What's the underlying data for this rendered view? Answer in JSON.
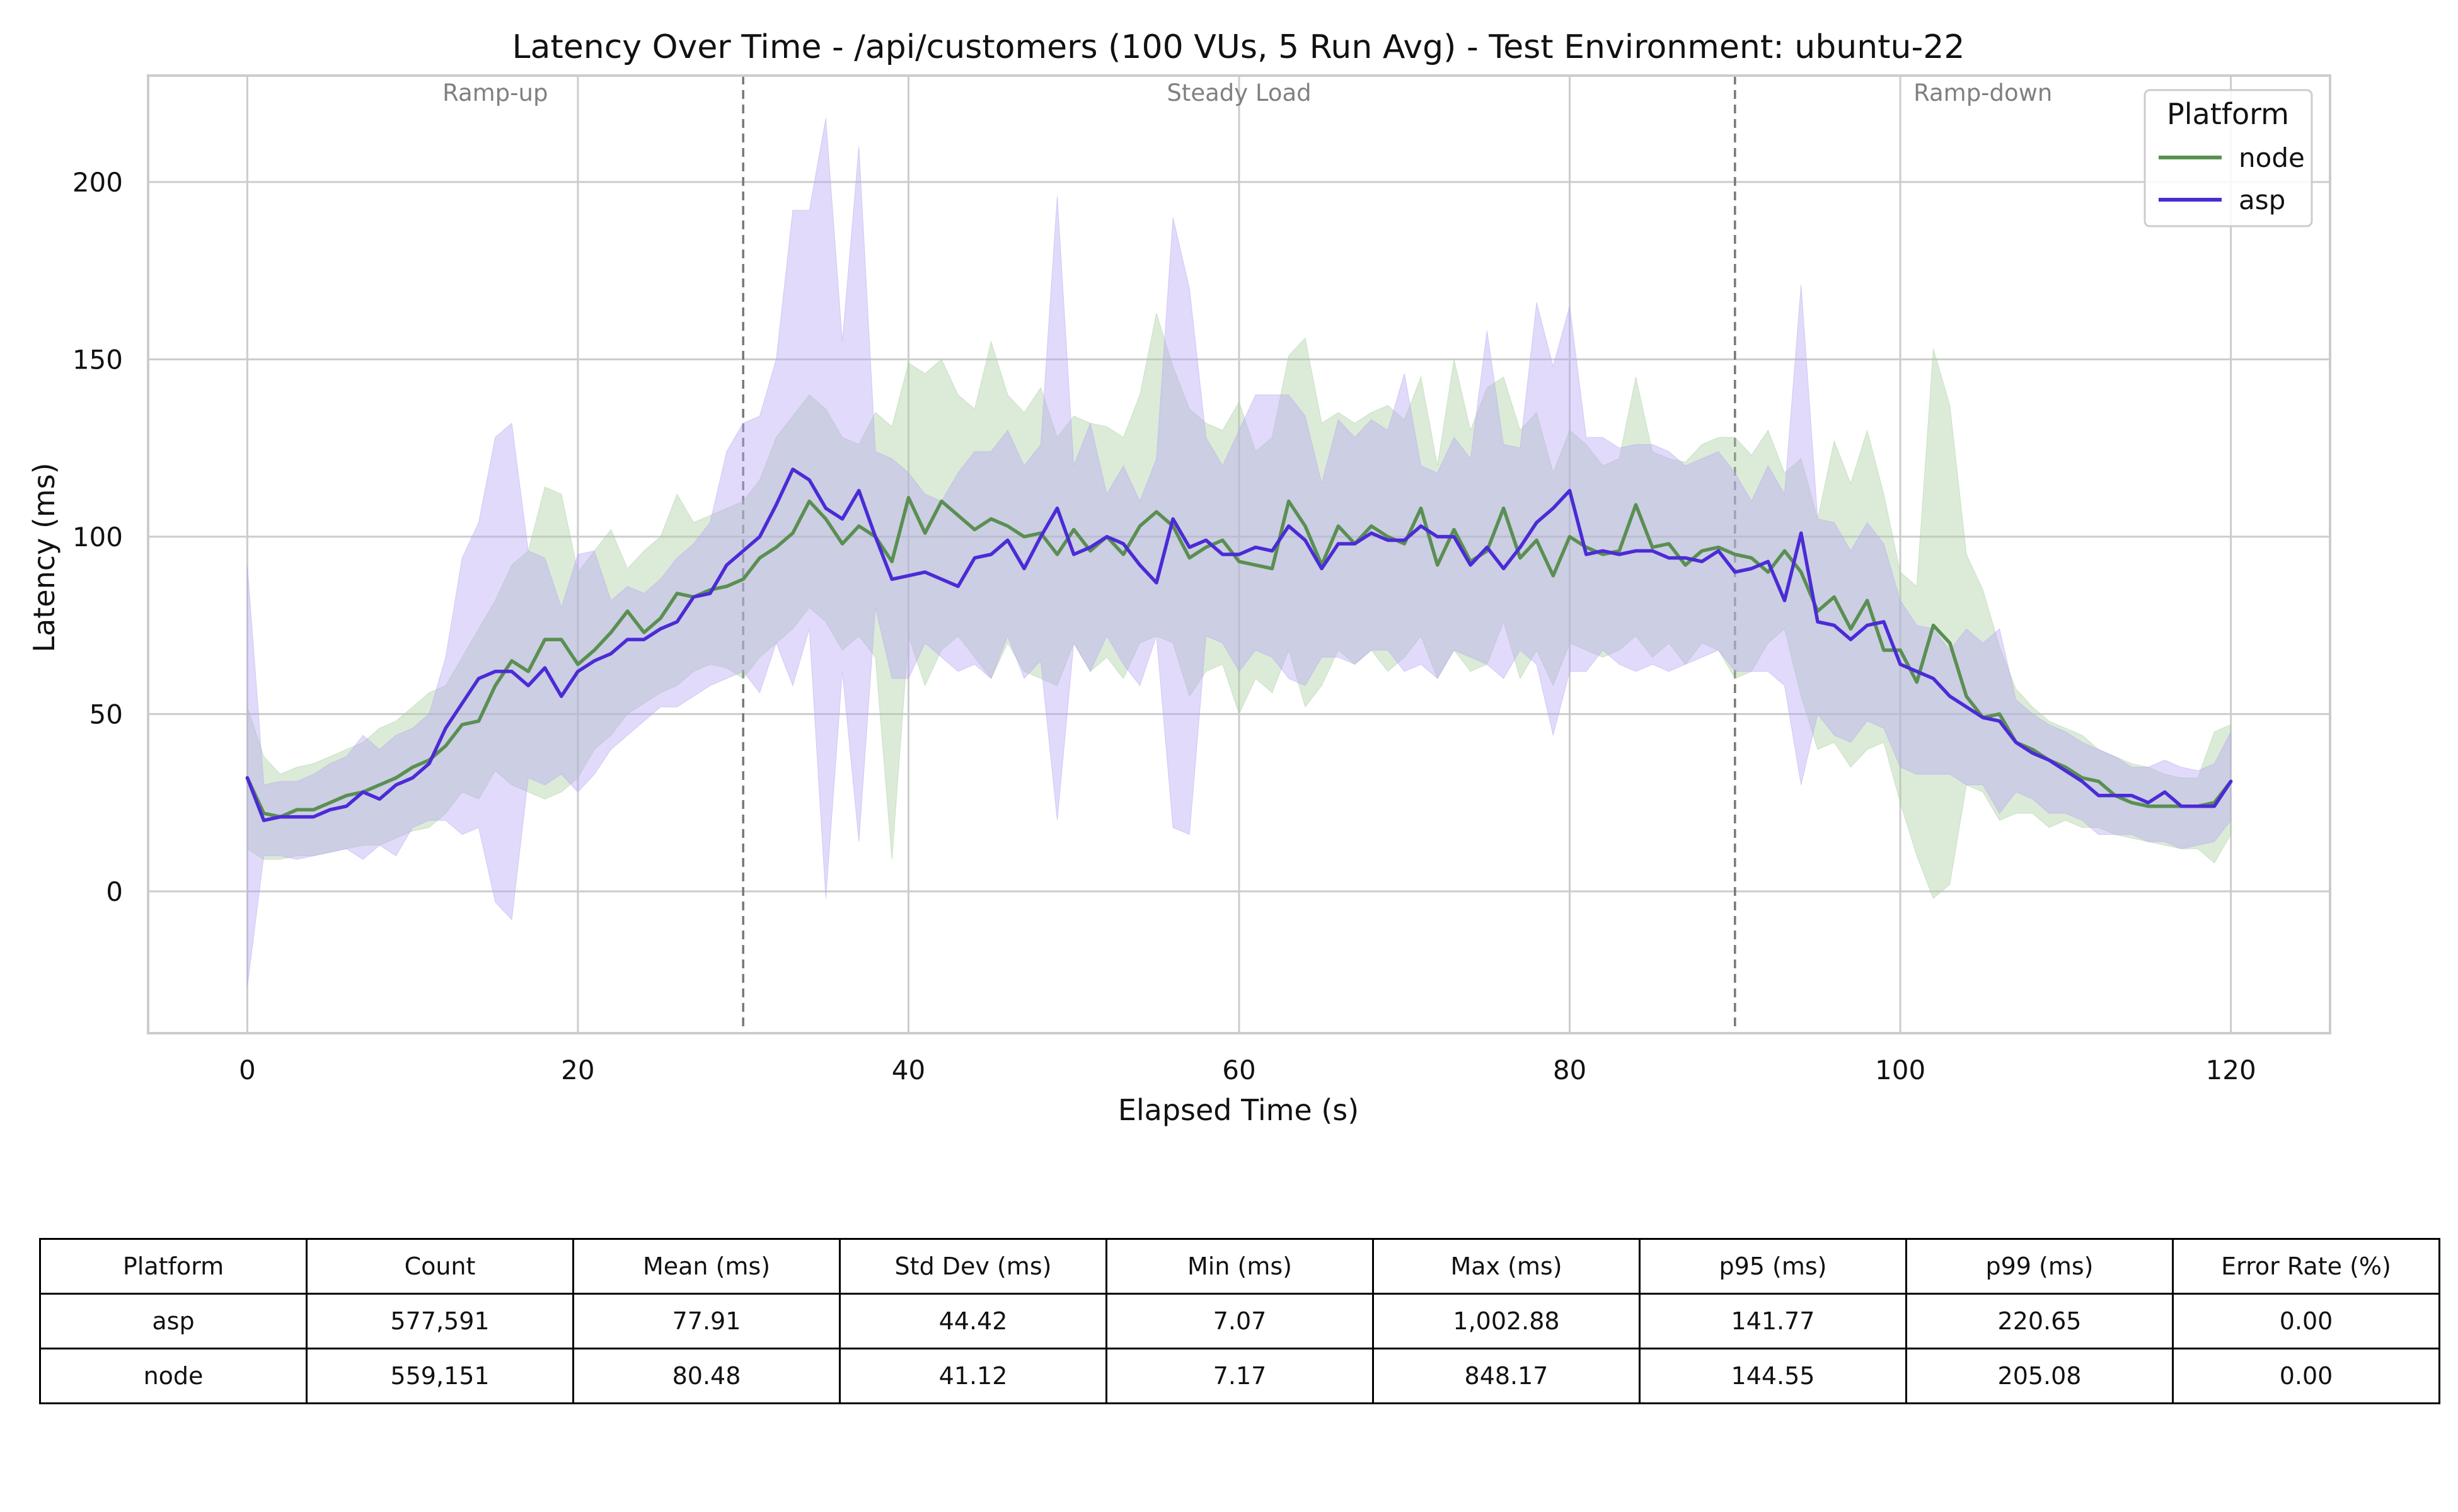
{
  "chart_data": {
    "type": "line",
    "title": "Latency Over Time - /api/customers (100 VUs, 5 Run Avg) - Test Environment: ubuntu-22",
    "xlabel": "Elapsed Time (s)",
    "ylabel": "Latency (ms)",
    "xlim": [
      -6,
      126
    ],
    "ylim": [
      -40,
      230
    ],
    "xticks": [
      0,
      20,
      40,
      60,
      80,
      100,
      120
    ],
    "yticks": [
      0,
      50,
      100,
      150,
      200
    ],
    "grid": true,
    "legend": {
      "title": "Platform",
      "placement": "top-right"
    },
    "phase_boundaries": [
      30,
      90
    ],
    "phases": [
      {
        "label": "Ramp-up",
        "x": 15
      },
      {
        "label": "Steady Load",
        "x": 60
      },
      {
        "label": "Ramp-down",
        "x": 105
      }
    ],
    "series": [
      {
        "name": "node",
        "color": "#5a8f52",
        "band_color": "#a9cfa2",
        "x": [
          0,
          1,
          2,
          3,
          4,
          5,
          6,
          7,
          8,
          9,
          10,
          11,
          12,
          13,
          14,
          15,
          16,
          17,
          18,
          19,
          20,
          21,
          22,
          23,
          24,
          25,
          26,
          27,
          28,
          29,
          30,
          31,
          32,
          33,
          34,
          35,
          36,
          37,
          38,
          39,
          40,
          41,
          42,
          43,
          44,
          45,
          46,
          47,
          48,
          49,
          50,
          51,
          52,
          53,
          54,
          55,
          56,
          57,
          58,
          59,
          60,
          61,
          62,
          63,
          64,
          65,
          66,
          67,
          68,
          69,
          70,
          71,
          72,
          73,
          74,
          75,
          76,
          77,
          78,
          79,
          80,
          81,
          82,
          83,
          84,
          85,
          86,
          87,
          88,
          89,
          90,
          91,
          92,
          93,
          94,
          95,
          96,
          97,
          98,
          99,
          100,
          101,
          102,
          103,
          104,
          105,
          106,
          107,
          108,
          109,
          110,
          111,
          112,
          113,
          114,
          115,
          116,
          117,
          118,
          119,
          120
        ],
        "mean": [
          32,
          22,
          21,
          23,
          23,
          25,
          27,
          28,
          30,
          32,
          35,
          37,
          41,
          47,
          48,
          58,
          65,
          62,
          71,
          71,
          64,
          68,
          73,
          79,
          73,
          77,
          84,
          83,
          85,
          86,
          88,
          94,
          97,
          101,
          110,
          105,
          98,
          103,
          100,
          93,
          111,
          101,
          110,
          106,
          102,
          105,
          103,
          100,
          101,
          95,
          102,
          96,
          100,
          95,
          103,
          107,
          103,
          94,
          97,
          99,
          93,
          92,
          91,
          110,
          103,
          92,
          103,
          98,
          103,
          100,
          98,
          108,
          92,
          102,
          93,
          96,
          108,
          94,
          99,
          89,
          100,
          97,
          95,
          96,
          109,
          97,
          98,
          92,
          96,
          97,
          95,
          94,
          90,
          96,
          90,
          79,
          83,
          74,
          82,
          68,
          68,
          59,
          75,
          70,
          55,
          49,
          50,
          42,
          40,
          37,
          35,
          32,
          31,
          27,
          25,
          24,
          24,
          24,
          24,
          25,
          31
        ],
        "upper": [
          52,
          38,
          33,
          35,
          36,
          38,
          40,
          42,
          46,
          48,
          52,
          56,
          58,
          66,
          74,
          82,
          92,
          96,
          114,
          112,
          90,
          96,
          102,
          91,
          96,
          100,
          112,
          104,
          106,
          108,
          110,
          116,
          128,
          134,
          140,
          136,
          128,
          126,
          135,
          131,
          149,
          146,
          150,
          140,
          136,
          155,
          140,
          135,
          142,
          128,
          134,
          132,
          131,
          128,
          140,
          163,
          148,
          136,
          132,
          130,
          138,
          124,
          128,
          151,
          156,
          132,
          135,
          132,
          135,
          137,
          133,
          145,
          120,
          150,
          130,
          142,
          145,
          130,
          135,
          118,
          130,
          126,
          120,
          122,
          145,
          124,
          122,
          121,
          126,
          128,
          128,
          123,
          130,
          118,
          122,
          105,
          127,
          115,
          130,
          112,
          90,
          86,
          153,
          137,
          95,
          85,
          69,
          57,
          52,
          48,
          46,
          44,
          40,
          38,
          36,
          35,
          33,
          32,
          32,
          45,
          47
        ],
        "lower": [
          12,
          9,
          9,
          10,
          10,
          11,
          12,
          13,
          13,
          15,
          17,
          18,
          22,
          28,
          26,
          34,
          30,
          28,
          26,
          28,
          32,
          40,
          44,
          50,
          53,
          56,
          58,
          62,
          64,
          63,
          60,
          66,
          70,
          74,
          80,
          76,
          68,
          72,
          66,
          9,
          72,
          58,
          68,
          72,
          66,
          60,
          70,
          62,
          60,
          58,
          70,
          62,
          66,
          60,
          70,
          72,
          70,
          55,
          62,
          64,
          50,
          60,
          56,
          68,
          52,
          58,
          68,
          64,
          68,
          62,
          66,
          72,
          60,
          68,
          62,
          64,
          76,
          60,
          68,
          58,
          70,
          68,
          66,
          68,
          72,
          66,
          70,
          64,
          70,
          68,
          60,
          62,
          70,
          74,
          55,
          40,
          42,
          35,
          40,
          42,
          25,
          10,
          -2,
          2,
          30,
          28,
          20,
          22,
          22,
          18,
          20,
          18,
          18,
          16,
          15,
          14,
          13,
          12,
          12,
          8,
          16
        ]
      },
      {
        "name": "asp",
        "color": "#4b2bd6",
        "band_color": "#b8a8f2",
        "x": [
          0,
          1,
          2,
          3,
          4,
          5,
          6,
          7,
          8,
          9,
          10,
          11,
          12,
          13,
          14,
          15,
          16,
          17,
          18,
          19,
          20,
          21,
          22,
          23,
          24,
          25,
          26,
          27,
          28,
          29,
          30,
          31,
          32,
          33,
          34,
          35,
          36,
          37,
          38,
          39,
          40,
          41,
          42,
          43,
          44,
          45,
          46,
          47,
          48,
          49,
          50,
          51,
          52,
          53,
          54,
          55,
          56,
          57,
          58,
          59,
          60,
          61,
          62,
          63,
          64,
          65,
          66,
          67,
          68,
          69,
          70,
          71,
          72,
          73,
          74,
          75,
          76,
          77,
          78,
          79,
          80,
          81,
          82,
          83,
          84,
          85,
          86,
          87,
          88,
          89,
          90,
          91,
          92,
          93,
          94,
          95,
          96,
          97,
          98,
          99,
          100,
          101,
          102,
          103,
          104,
          105,
          106,
          107,
          108,
          109,
          110,
          111,
          112,
          113,
          114,
          115,
          116,
          117,
          118,
          119,
          120
        ],
        "mean": [
          32,
          20,
          21,
          21,
          21,
          23,
          24,
          28,
          26,
          30,
          32,
          36,
          46,
          53,
          60,
          62,
          62,
          58,
          63,
          55,
          62,
          65,
          67,
          71,
          71,
          74,
          76,
          83,
          84,
          92,
          96,
          100,
          109,
          119,
          116,
          108,
          105,
          113,
          100,
          88,
          89,
          90,
          88,
          86,
          94,
          95,
          99,
          91,
          100,
          108,
          95,
          97,
          100,
          98,
          92,
          87,
          105,
          97,
          99,
          95,
          95,
          97,
          96,
          103,
          99,
          91,
          98,
          98,
          101,
          99,
          99,
          103,
          100,
          100,
          92,
          97,
          91,
          97,
          104,
          108,
          113,
          95,
          96,
          95,
          96,
          96,
          94,
          94,
          93,
          96,
          90,
          91,
          93,
          82,
          101,
          76,
          75,
          71,
          75,
          76,
          64,
          62,
          60,
          55,
          52,
          49,
          48,
          42,
          39,
          37,
          34,
          31,
          27,
          27,
          27,
          25,
          28,
          24,
          24,
          24,
          31
        ],
        "upper": [
          92,
          30,
          31,
          31,
          33,
          36,
          38,
          44,
          40,
          44,
          46,
          50,
          66,
          94,
          104,
          128,
          132,
          96,
          94,
          80,
          95,
          96,
          82,
          86,
          84,
          88,
          94,
          98,
          104,
          124,
          132,
          134,
          150,
          192,
          192,
          218,
          155,
          210,
          124,
          122,
          118,
          112,
          110,
          118,
          124,
          124,
          130,
          120,
          126,
          196,
          120,
          132,
          112,
          120,
          110,
          122,
          190,
          170,
          128,
          120,
          130,
          140,
          140,
          140,
          134,
          115,
          133,
          128,
          133,
          130,
          146,
          120,
          118,
          128,
          122,
          158,
          126,
          125,
          166,
          148,
          165,
          128,
          128,
          125,
          126,
          126,
          124,
          120,
          122,
          124,
          118,
          110,
          120,
          112,
          171,
          105,
          104,
          96,
          104,
          98,
          82,
          75,
          74,
          68,
          74,
          70,
          74,
          54,
          50,
          47,
          45,
          42,
          40,
          38,
          35,
          35,
          37,
          35,
          34,
          36,
          45
        ],
        "lower": [
          -27,
          10,
          10,
          9,
          10,
          11,
          12,
          9,
          13,
          10,
          18,
          20,
          20,
          16,
          18,
          -3,
          -8,
          32,
          30,
          33,
          28,
          33,
          40,
          44,
          48,
          52,
          52,
          55,
          58,
          60,
          62,
          56,
          70,
          58,
          74,
          -2,
          62,
          14,
          80,
          60,
          60,
          70,
          66,
          62,
          64,
          60,
          72,
          60,
          65,
          20,
          70,
          62,
          72,
          64,
          58,
          72,
          18,
          16,
          72,
          70,
          62,
          68,
          66,
          60,
          58,
          66,
          66,
          64,
          68,
          68,
          62,
          64,
          60,
          68,
          66,
          64,
          60,
          68,
          64,
          44,
          62,
          62,
          68,
          64,
          62,
          64,
          62,
          64,
          66,
          68,
          62,
          62,
          62,
          58,
          30,
          50,
          44,
          42,
          48,
          46,
          35,
          33,
          33,
          33,
          30,
          30,
          22,
          28,
          26,
          22,
          22,
          20,
          16,
          16,
          16,
          14,
          14,
          12,
          13,
          14,
          20
        ]
      }
    ]
  },
  "table": {
    "headers": [
      "Platform",
      "Count",
      "Mean (ms)",
      "Std Dev (ms)",
      "Min (ms)",
      "Max (ms)",
      "p95 (ms)",
      "p99 (ms)",
      "Error Rate (%)"
    ],
    "rows": [
      [
        "asp",
        "577,591",
        "77.91",
        "44.42",
        "7.07",
        "1,002.88",
        "141.77",
        "220.65",
        "0.00"
      ],
      [
        "node",
        "559,151",
        "80.48",
        "41.12",
        "7.17",
        "848.17",
        "144.55",
        "205.08",
        "0.00"
      ]
    ]
  }
}
